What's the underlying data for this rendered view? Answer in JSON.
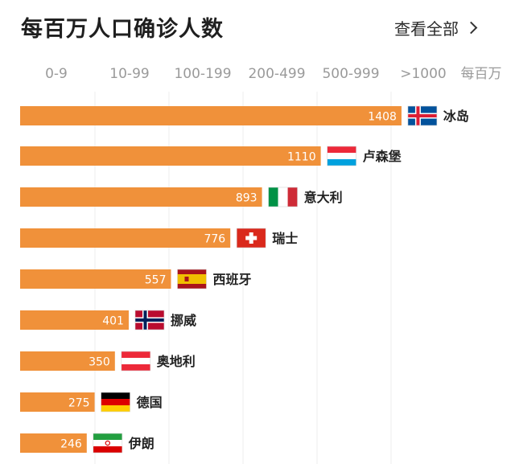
{
  "header": {
    "title": "每百万人口确诊人数",
    "view_all": "查看全部"
  },
  "colors": {
    "bar": "#f0913a",
    "grid": "#ececec",
    "tick": "#9a9a9a"
  },
  "chart_data": {
    "type": "bar",
    "orientation": "horizontal",
    "x_ticks": [
      "0-9",
      "10-99",
      "100-199",
      "200-499",
      "500-999",
      ">1000",
      "每百万"
    ],
    "categories": [
      "冰岛",
      "卢森堡",
      "意大利",
      "瑞士",
      "西班牙",
      "挪威",
      "奥地利",
      "德国",
      "伊朗"
    ],
    "values": [
      1408,
      1110,
      893,
      776,
      557,
      401,
      350,
      275,
      246
    ],
    "flags": [
      "iceland",
      "luxembourg",
      "italy",
      "switzerland",
      "spain",
      "norway",
      "austria",
      "germany",
      "iran"
    ],
    "grid": true
  }
}
